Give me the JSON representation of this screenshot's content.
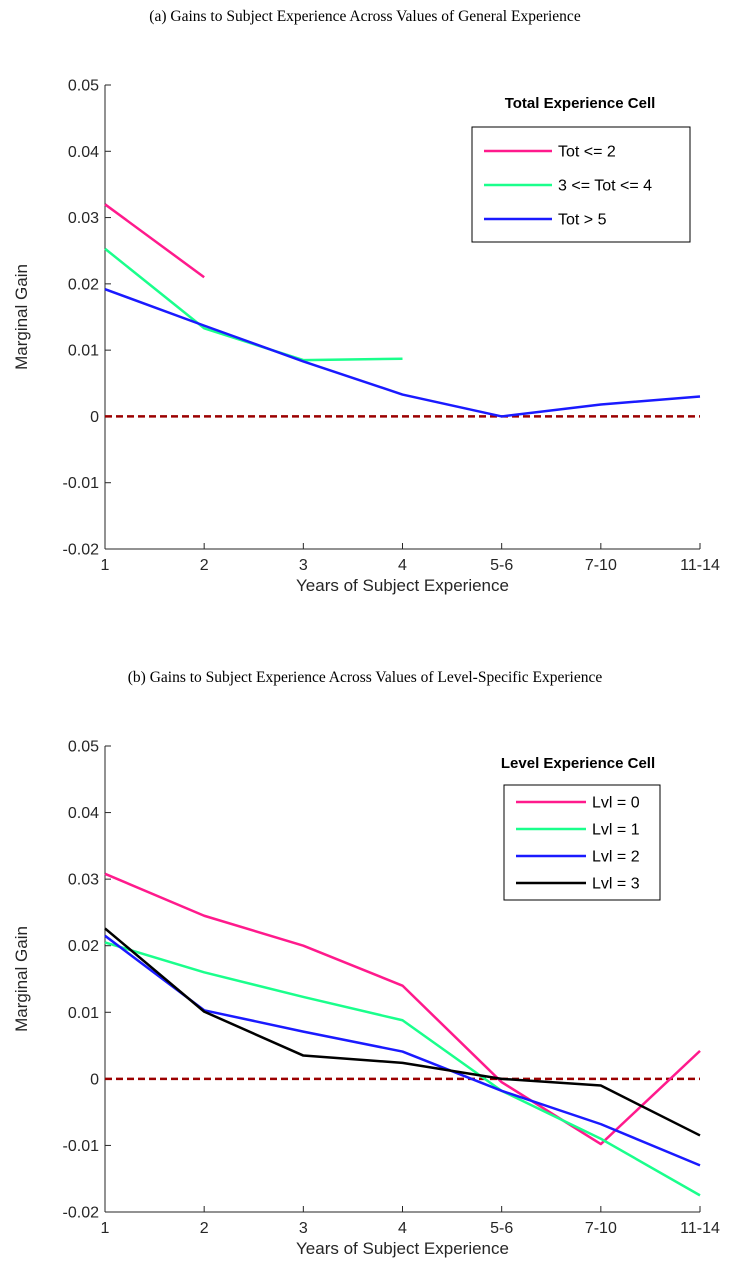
{
  "chart_data": [
    {
      "type": "line",
      "title": "(a) Gains to Subject Experience Across Values of General Experience",
      "xlabel": "Years of Subject Experience",
      "ylabel": "Marginal Gain",
      "categories": [
        "1",
        "2",
        "3",
        "4",
        "5-6",
        "7-10",
        "11-14"
      ],
      "ylim": [
        -0.02,
        0.05
      ],
      "yticks": [
        "0.05",
        "0.04",
        "0.03",
        "0.02",
        "0.01",
        "0",
        "-0.01",
        "-0.02"
      ],
      "ytick_values": [
        0.05,
        0.04,
        0.03,
        0.02,
        0.01,
        0,
        -0.01,
        -0.02
      ],
      "grid": false,
      "legend_title": "Total Experience Cell",
      "legend_position": "top-right",
      "reference_line": {
        "y": 0,
        "style": "dashed",
        "color": "#9b0000"
      },
      "series": [
        {
          "name": "Tot <= 2",
          "color": "#ff1a8c",
          "values": [
            0.032,
            0.021,
            null,
            null,
            null,
            null,
            null
          ]
        },
        {
          "name": "3 <= Tot <= 4",
          "color": "#1aff8c",
          "values": [
            0.0253,
            0.0133,
            0.0085,
            0.0087,
            null,
            null,
            null
          ]
        },
        {
          "name": "Tot > 5",
          "color": "#1a1aff",
          "values": [
            0.0192,
            0.0137,
            0.0083,
            0.0033,
            0.0,
            0.0018,
            0.003
          ]
        }
      ]
    },
    {
      "type": "line",
      "title": "(b) Gains to Subject Experience Across Values of Level-Specific Experience",
      "xlabel": "Years of Subject Experience",
      "ylabel": "Marginal Gain",
      "categories": [
        "1",
        "2",
        "3",
        "4",
        "5-6",
        "7-10",
        "11-14"
      ],
      "ylim": [
        -0.02,
        0.05
      ],
      "yticks": [
        "0.05",
        "0.04",
        "0.03",
        "0.02",
        "0.01",
        "0",
        "-0.01",
        "-0.02"
      ],
      "ytick_values": [
        0.05,
        0.04,
        0.03,
        0.02,
        0.01,
        0,
        -0.01,
        -0.02
      ],
      "grid": false,
      "legend_title": "Level Experience Cell",
      "legend_position": "top-right",
      "reference_line": {
        "y": 0,
        "style": "dashed",
        "color": "#9b0000"
      },
      "series": [
        {
          "name": "Lvl = 0",
          "color": "#ff1a8c",
          "values": [
            0.0308,
            0.0245,
            0.02,
            0.014,
            -0.0005,
            -0.0098,
            0.0042
          ]
        },
        {
          "name": "Lvl = 1",
          "color": "#1aff8c",
          "values": [
            0.0205,
            0.016,
            0.0123,
            0.0088,
            -0.0018,
            -0.009,
            -0.0175
          ]
        },
        {
          "name": "Lvl = 2",
          "color": "#1a1aff",
          "values": [
            0.0215,
            0.0103,
            0.0071,
            0.0041,
            -0.0018,
            -0.0068,
            -0.013
          ]
        },
        {
          "name": "Lvl = 3",
          "color": "#000000",
          "values": [
            0.0226,
            0.0101,
            0.0035,
            0.0024,
            0.0,
            -0.001,
            -0.0085
          ]
        }
      ]
    }
  ]
}
